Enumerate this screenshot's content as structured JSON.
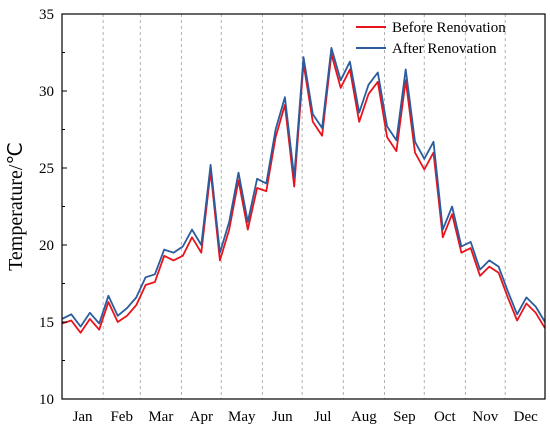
{
  "chart_data": {
    "type": "line",
    "title": "",
    "xlabel": "",
    "ylabel": "Temperature/℃",
    "ylim": [
      10,
      35
    ],
    "yticks": [
      10,
      15,
      20,
      25,
      30,
      35
    ],
    "months": [
      "Jan",
      "Feb",
      "Mar",
      "Apr",
      "May",
      "Jun",
      "Jul",
      "Aug",
      "Sep",
      "Oct",
      "Nov",
      "Dec"
    ],
    "grid": "vertical dashed month separators",
    "legend_position": "top-right",
    "x_unit": "day of year",
    "x": [
      1,
      8,
      15,
      22,
      29,
      36,
      43,
      50,
      57,
      64,
      71,
      78,
      85,
      92,
      99,
      106,
      113,
      120,
      127,
      134,
      141,
      148,
      155,
      162,
      169,
      176,
      183,
      190,
      197,
      204,
      211,
      218,
      225,
      232,
      239,
      246,
      253,
      260,
      267,
      274,
      281,
      288,
      295,
      302,
      309,
      316,
      323,
      330,
      337,
      344,
      351,
      358,
      365
    ],
    "series": [
      {
        "name": "Before Renovation",
        "color": "#e8141c",
        "values": [
          14.9,
          15.1,
          14.3,
          15.2,
          14.5,
          16.3,
          15.0,
          15.4,
          16.1,
          17.4,
          17.6,
          19.3,
          19.0,
          19.3,
          20.5,
          19.5,
          24.8,
          19.0,
          21.0,
          24.2,
          21.0,
          23.7,
          23.5,
          27.0,
          29.1,
          23.8,
          31.8,
          28.0,
          27.1,
          32.4,
          30.2,
          31.4,
          28.0,
          29.8,
          30.6,
          27.0,
          26.1,
          30.7,
          26.0,
          24.9,
          26.0,
          20.5,
          22.0,
          19.5,
          19.8,
          18.0,
          18.6,
          18.2,
          16.6,
          15.1,
          16.2,
          15.6,
          14.6
        ]
      },
      {
        "name": "After Renovation",
        "color": "#2a5c9e",
        "values": [
          15.2,
          15.5,
          14.7,
          15.6,
          14.9,
          16.7,
          15.4,
          15.9,
          16.6,
          17.9,
          18.1,
          19.7,
          19.5,
          19.9,
          21.0,
          20.0,
          25.2,
          19.5,
          21.5,
          24.7,
          21.5,
          24.3,
          24.0,
          27.5,
          29.6,
          24.4,
          32.2,
          28.5,
          27.6,
          32.8,
          30.7,
          31.9,
          28.6,
          30.4,
          31.2,
          27.7,
          26.8,
          31.4,
          26.7,
          25.6,
          26.7,
          21.0,
          22.5,
          19.9,
          20.2,
          18.4,
          19.0,
          18.6,
          17.0,
          15.5,
          16.6,
          16.0,
          15.0
        ]
      }
    ]
  }
}
